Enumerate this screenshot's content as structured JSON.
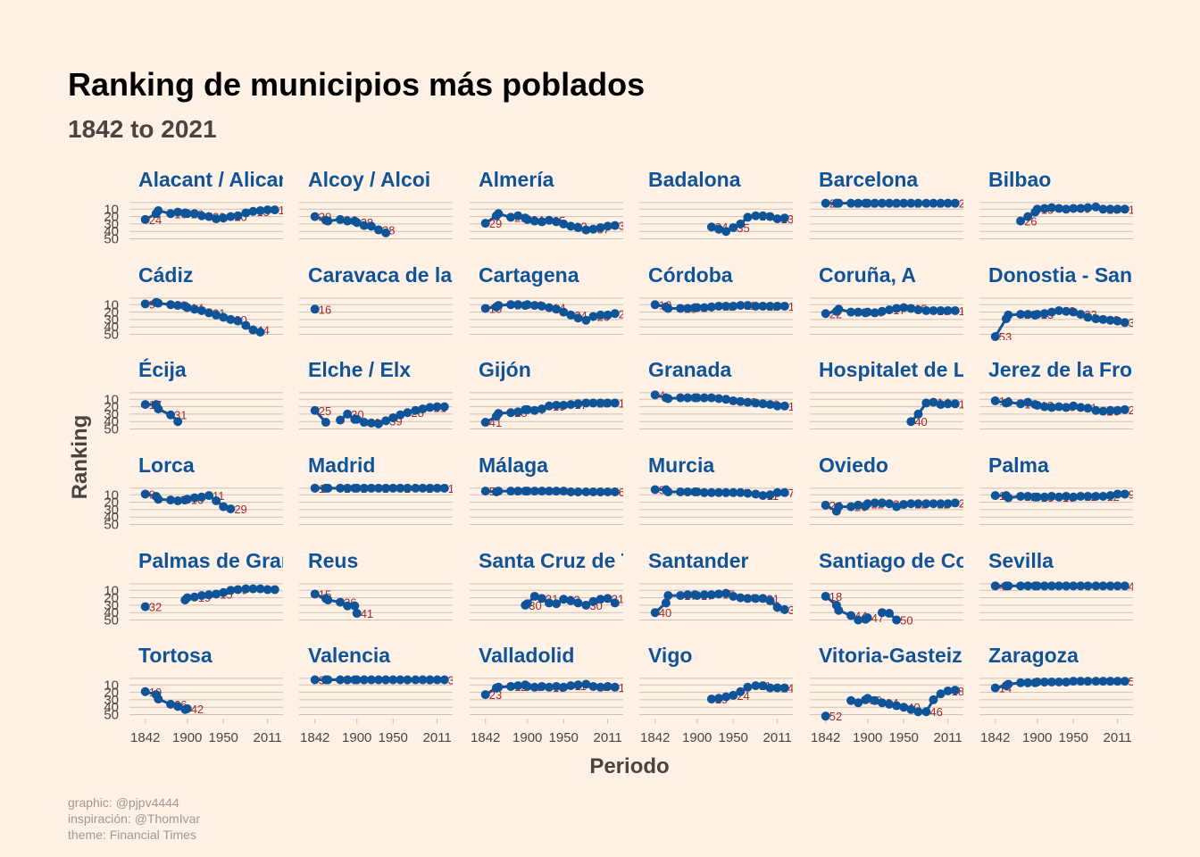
{
  "chart_data": {
    "type": "line",
    "title": "Ranking de municipios más poblados",
    "subtitle": "1842 to 2021",
    "xlabel": "Periodo",
    "ylabel": "Ranking",
    "x_ticks": [
      1842,
      1900,
      1950,
      2011
    ],
    "x_tick_labels": [
      "1842",
      "1900",
      "1950",
      "2011"
    ],
    "y_ticks": [
      10,
      20,
      30,
      40,
      50
    ],
    "y_tick_labels": [
      "10",
      "20",
      "30",
      "40",
      "50"
    ],
    "xlim": [
      1830,
      2025
    ],
    "ylim": [
      53,
      0
    ],
    "y_reversed": true,
    "caption": [
      "graphic: @pjpv4444",
      "inspiración: @ThomIvar",
      "theme: Financial Times"
    ],
    "colors": {
      "line": "#0F5499",
      "point": "#0F5499",
      "label": "#A3282B",
      "background": "#FFF1E5",
      "grid": "#CCC1B7"
    },
    "years": [
      1842,
      1857,
      1860,
      1877,
      1887,
      1897,
      1900,
      1910,
      1920,
      1930,
      1940,
      1950,
      1960,
      1970,
      1981,
      1991,
      2001,
      2011,
      2021
    ],
    "panels": [
      {
        "name": "Alacant / Alicant",
        "values": [
          24,
          16,
          12,
          16,
          14,
          15,
          16,
          16,
          19,
          20,
          23,
          22,
          20,
          19,
          15,
          13,
          12,
          11,
          11
        ]
      },
      {
        "name": "Alcoy / Alcoi",
        "values": [
          20,
          25,
          26,
          24,
          26,
          26,
          28,
          32,
          33,
          38,
          42
        ]
      },
      {
        "name": "Almería",
        "values": [
          29,
          19,
          16,
          21,
          19,
          22,
          24,
          26,
          27,
          25,
          27,
          30,
          33,
          35,
          38,
          37,
          35,
          33,
          32
        ]
      },
      {
        "name": "Badalona",
        "values": [
          null,
          null,
          null,
          null,
          null,
          null,
          null,
          null,
          34,
          37,
          40,
          35,
          30,
          21,
          19,
          19,
          20,
          23,
          22
        ]
      },
      {
        "name": "Barcelona",
        "values": [
          2,
          2,
          2,
          2,
          2,
          2,
          2,
          2,
          2,
          2,
          2,
          2,
          2,
          2,
          2,
          2,
          2,
          2,
          2
        ]
      },
      {
        "name": "Bilbao",
        "values": [
          null,
          null,
          null,
          26,
          20,
          14,
          10,
          9,
          8,
          9,
          10,
          9,
          9,
          8,
          7,
          10,
          10,
          10,
          10
        ]
      },
      {
        "name": "Cádiz",
        "values": [
          9,
          7,
          8,
          10,
          11,
          12,
          14,
          16,
          18,
          21,
          24,
          27,
          30,
          32,
          38,
          44,
          47
        ]
      },
      {
        "name": "Caravaca de la Cruz",
        "values": [
          16
        ]
      },
      {
        "name": "Cartagena",
        "values": [
          15,
          13,
          11,
          10,
          10,
          11,
          10,
          11,
          12,
          14,
          16,
          20,
          24,
          28,
          31,
          26,
          24,
          24,
          22
        ]
      },
      {
        "name": "Córdoba",
        "values": [
          10,
          13,
          15,
          15,
          15,
          14,
          14,
          14,
          13,
          12,
          12,
          12,
          11,
          11,
          12,
          12,
          12,
          12,
          12
        ]
      },
      {
        "name": "Coruña, A",
        "values": [
          22,
          19,
          16,
          20,
          20,
          21,
          20,
          21,
          19,
          17,
          15,
          14,
          15,
          17,
          18,
          18,
          18,
          18,
          18
        ]
      },
      {
        "name": "Donostia - San Sebastián",
        "values": [
          53,
          29,
          24,
          23,
          23,
          24,
          23,
          22,
          20,
          18,
          19,
          20,
          23,
          27,
          29,
          30,
          31,
          32,
          34
        ]
      },
      {
        "name": "Écija",
        "values": [
          17,
          17,
          23,
          31,
          40
        ]
      },
      {
        "name": "Elche / Elx",
        "values": [
          25,
          41,
          null,
          38,
          30,
          37,
          37,
          41,
          42,
          43,
          39,
          35,
          31,
          28,
          25,
          23,
          21,
          20,
          20
        ]
      },
      {
        "name": "Gijón",
        "values": [
          41,
          33,
          29,
          28,
          27,
          24,
          24,
          25,
          23,
          19,
          18,
          18,
          17,
          16,
          15,
          15,
          15,
          15,
          15
        ]
      },
      {
        "name": "Granada",
        "values": [
          4,
          8,
          9,
          8,
          8,
          8,
          8,
          8,
          8,
          9,
          10,
          12,
          13,
          14,
          15,
          16,
          17,
          19,
          19
        ]
      },
      {
        "name": "Hospitalet de Llobregat, L'",
        "values": [
          null,
          null,
          null,
          null,
          null,
          null,
          null,
          null,
          null,
          null,
          null,
          null,
          40,
          30,
          15,
          14,
          17,
          16,
          16
        ]
      },
      {
        "name": "Jerez de la Frontera",
        "values": [
          12,
          15,
          14,
          16,
          14,
          17,
          18,
          20,
          21,
          20,
          21,
          19,
          21,
          22,
          25,
          26,
          25,
          25,
          24
        ]
      },
      {
        "name": "Lorca",
        "values": [
          9,
          12,
          16,
          17,
          18,
          17,
          16,
          14,
          13,
          11,
          18,
          26,
          29
        ]
      },
      {
        "name": "Madrid",
        "values": [
          1,
          1,
          1,
          1,
          1,
          1,
          1,
          1,
          1,
          1,
          1,
          1,
          1,
          1,
          1,
          1,
          1,
          1,
          1
        ]
      },
      {
        "name": "Málaga",
        "values": [
          5,
          6,
          5,
          5,
          5,
          5,
          5,
          5,
          5,
          5,
          5,
          5,
          6,
          6,
          6,
          6,
          6,
          6,
          6
        ]
      },
      {
        "name": "Murcia",
        "values": [
          3,
          3,
          6,
          6,
          6,
          6,
          6,
          7,
          7,
          7,
          7,
          7,
          7,
          8,
          9,
          11,
          10,
          7,
          7
        ]
      },
      {
        "name": "Oviedo",
        "values": [
          24,
          32,
          26,
          26,
          24,
          25,
          22,
          21,
          21,
          22,
          26,
          23,
          22,
          22,
          22,
          22,
          22,
          22,
          21
        ]
      },
      {
        "name": "Palma",
        "values": [
          11,
          11,
          14,
          12,
          12,
          13,
          13,
          13,
          12,
          13,
          12,
          13,
          12,
          12,
          12,
          12,
          11,
          9,
          9
        ]
      },
      {
        "name": "Palmas de Gran Canaria, Las",
        "values": [
          32,
          null,
          null,
          null,
          null,
          23,
          20,
          19,
          17,
          16,
          15,
          13,
          10,
          9,
          8,
          8,
          8,
          9,
          9
        ]
      },
      {
        "name": "Reus",
        "values": [
          15,
          21,
          23,
          26,
          31,
          31,
          41
        ]
      },
      {
        "name": "Santa Cruz de Tenerife",
        "values": [
          null,
          null,
          null,
          null,
          null,
          30,
          28,
          18,
          21,
          27,
          28,
          22,
          24,
          27,
          30,
          25,
          22,
          21,
          27
        ]
      },
      {
        "name": "Santander",
        "values": [
          40,
          27,
          17,
          17,
          16,
          16,
          17,
          16,
          16,
          15,
          14,
          18,
          20,
          21,
          21,
          21,
          24,
          33,
          36
        ]
      },
      {
        "name": "Santiago de Compostela",
        "values": [
          18,
          30,
          37,
          44,
          50,
          49,
          47,
          null,
          40,
          41,
          50
        ]
      },
      {
        "name": "Sevilla",
        "values": [
          4,
          4,
          4,
          4,
          4,
          4,
          4,
          4,
          4,
          4,
          4,
          4,
          4,
          4,
          4,
          4,
          4,
          4,
          4
        ]
      },
      {
        "name": "Tortosa",
        "values": [
          19,
          23,
          29,
          36,
          39,
          43,
          42
        ]
      },
      {
        "name": "Valencia",
        "values": [
          3,
          3,
          3,
          3,
          3,
          3,
          3,
          3,
          3,
          3,
          3,
          3,
          3,
          3,
          3,
          3,
          3,
          3,
          3
        ]
      },
      {
        "name": "Valladolid",
        "values": [
          23,
          14,
          13,
          12,
          11,
          10,
          12,
          13,
          12,
          13,
          12,
          13,
          11,
          10,
          9,
          12,
          13,
          12,
          13
        ]
      },
      {
        "name": "Vigo",
        "values": [
          null,
          null,
          null,
          null,
          null,
          null,
          null,
          null,
          29,
          28,
          26,
          24,
          19,
          13,
          11,
          11,
          14,
          14,
          14
        ]
      },
      {
        "name": "Vitoria-Gasteiz",
        "values": [
          52,
          null,
          null,
          31,
          34,
          30,
          28,
          31,
          34,
          36,
          38,
          40,
          43,
          46,
          46,
          30,
          22,
          18,
          17
        ]
      },
      {
        "name": "Zaragoza",
        "values": [
          14,
          11,
          9,
          7,
          7,
          7,
          6,
          6,
          6,
          6,
          6,
          5,
          5,
          5,
          5,
          5,
          5,
          5,
          5
        ]
      }
    ]
  }
}
